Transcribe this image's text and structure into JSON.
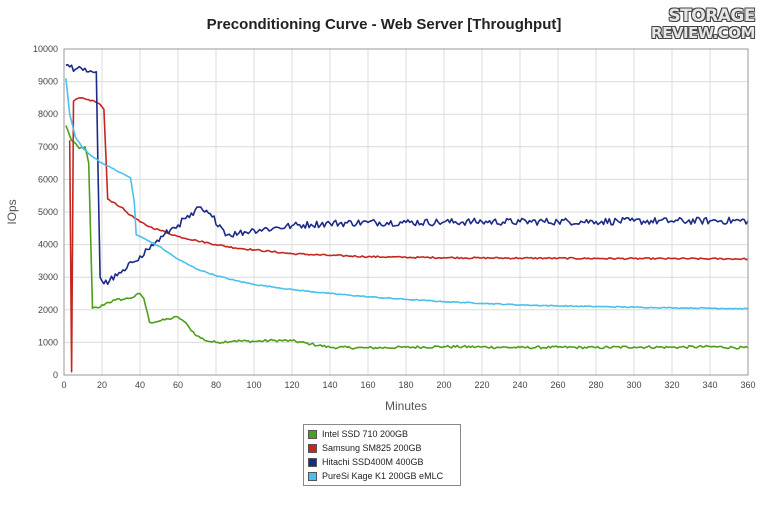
{
  "chart_data": {
    "type": "line",
    "title": "Preconditioning Curve - Web Server [Throughput]",
    "xlabel": "Minutes",
    "ylabel": "IOps",
    "xlim": [
      0,
      360
    ],
    "ylim": [
      0,
      10000
    ],
    "xticks": [
      0,
      20,
      40,
      60,
      80,
      100,
      120,
      140,
      160,
      180,
      200,
      220,
      240,
      260,
      280,
      300,
      320,
      340,
      360
    ],
    "yticks": [
      0,
      1000,
      2000,
      3000,
      4000,
      5000,
      6000,
      7000,
      8000,
      9000,
      10000
    ],
    "grid": true,
    "legend_position": "bottom",
    "series": [
      {
        "name": "Intel SSD 710 200GB",
        "color": "#4d9e1b",
        "points": [
          [
            1,
            7650
          ],
          [
            4,
            7200
          ],
          [
            8,
            6950
          ],
          [
            11,
            7000
          ],
          [
            13,
            6500
          ],
          [
            15,
            2050
          ],
          [
            18,
            2060
          ],
          [
            22,
            2200
          ],
          [
            27,
            2300
          ],
          [
            32,
            2330
          ],
          [
            37,
            2400
          ],
          [
            40,
            2500
          ],
          [
            42,
            2350
          ],
          [
            45,
            1620
          ],
          [
            50,
            1650
          ],
          [
            55,
            1720
          ],
          [
            60,
            1780
          ],
          [
            63,
            1650
          ],
          [
            66,
            1450
          ],
          [
            70,
            1200
          ],
          [
            75,
            1050
          ],
          [
            80,
            1000
          ],
          [
            90,
            1050
          ],
          [
            100,
            1030
          ],
          [
            110,
            1060
          ],
          [
            120,
            1050
          ],
          [
            130,
            950
          ],
          [
            140,
            850
          ],
          [
            160,
            830
          ],
          [
            180,
            850
          ],
          [
            200,
            870
          ],
          [
            220,
            860
          ],
          [
            240,
            840
          ],
          [
            260,
            850
          ],
          [
            280,
            840
          ],
          [
            300,
            860
          ],
          [
            320,
            850
          ],
          [
            340,
            870
          ],
          [
            360,
            830
          ]
        ],
        "noise": 40
      },
      {
        "name": "Samsung SM825 200GB",
        "color": "#c4271f",
        "points": [
          [
            3,
            7200
          ],
          [
            4,
            100
          ],
          [
            5,
            8400
          ],
          [
            8,
            8500
          ],
          [
            12,
            8450
          ],
          [
            16,
            8400
          ],
          [
            19,
            8300
          ],
          [
            21,
            8150
          ],
          [
            23,
            5400
          ],
          [
            26,
            5300
          ],
          [
            30,
            5150
          ],
          [
            35,
            4900
          ],
          [
            40,
            4700
          ],
          [
            45,
            4550
          ],
          [
            50,
            4450
          ],
          [
            55,
            4350
          ],
          [
            60,
            4250
          ],
          [
            70,
            4120
          ],
          [
            80,
            4000
          ],
          [
            90,
            3900
          ],
          [
            100,
            3840
          ],
          [
            110,
            3780
          ],
          [
            120,
            3720
          ],
          [
            140,
            3670
          ],
          [
            160,
            3630
          ],
          [
            180,
            3610
          ],
          [
            200,
            3600
          ],
          [
            220,
            3590
          ],
          [
            240,
            3585
          ],
          [
            260,
            3580
          ],
          [
            280,
            3575
          ],
          [
            300,
            3570
          ],
          [
            320,
            3570
          ],
          [
            340,
            3565
          ],
          [
            360,
            3560
          ]
        ],
        "noise": 25
      },
      {
        "name": "Hitachi SSD400M 400GB",
        "color": "#1c2a88",
        "points": [
          [
            1,
            9500
          ],
          [
            3,
            9450
          ],
          [
            6,
            9380
          ],
          [
            10,
            9350
          ],
          [
            14,
            9330
          ],
          [
            17,
            9300
          ],
          [
            18,
            6000
          ],
          [
            19,
            3000
          ],
          [
            21,
            2800
          ],
          [
            24,
            2900
          ],
          [
            28,
            3050
          ],
          [
            32,
            3200
          ],
          [
            36,
            3450
          ],
          [
            40,
            3650
          ],
          [
            44,
            3850
          ],
          [
            48,
            4050
          ],
          [
            52,
            4250
          ],
          [
            56,
            4450
          ],
          [
            60,
            4600
          ],
          [
            64,
            4800
          ],
          [
            68,
            4900
          ],
          [
            71,
            5150
          ],
          [
            74,
            5000
          ],
          [
            78,
            4850
          ],
          [
            82,
            4600
          ],
          [
            86,
            4300
          ],
          [
            92,
            4350
          ],
          [
            100,
            4450
          ],
          [
            110,
            4500
          ],
          [
            120,
            4580
          ],
          [
            130,
            4620
          ],
          [
            140,
            4650
          ],
          [
            160,
            4680
          ],
          [
            180,
            4680
          ],
          [
            200,
            4690
          ],
          [
            220,
            4700
          ],
          [
            240,
            4700
          ],
          [
            260,
            4710
          ],
          [
            280,
            4710
          ],
          [
            300,
            4720
          ],
          [
            320,
            4720
          ],
          [
            340,
            4730
          ],
          [
            360,
            4730
          ]
        ],
        "noise": 110
      },
      {
        "name": "PureSi Kage K1 200GB eMLC",
        "color": "#4bbfee",
        "points": [
          [
            1,
            9100
          ],
          [
            3,
            8000
          ],
          [
            6,
            7300
          ],
          [
            10,
            6950
          ],
          [
            15,
            6700
          ],
          [
            20,
            6500
          ],
          [
            25,
            6350
          ],
          [
            30,
            6200
          ],
          [
            35,
            6050
          ],
          [
            37,
            5300
          ],
          [
            38,
            4300
          ],
          [
            40,
            4250
          ],
          [
            45,
            4100
          ],
          [
            50,
            3950
          ],
          [
            55,
            3750
          ],
          [
            60,
            3550
          ],
          [
            65,
            3400
          ],
          [
            70,
            3250
          ],
          [
            80,
            3050
          ],
          [
            90,
            2900
          ],
          [
            100,
            2780
          ],
          [
            110,
            2700
          ],
          [
            120,
            2620
          ],
          [
            140,
            2500
          ],
          [
            160,
            2400
          ],
          [
            180,
            2320
          ],
          [
            200,
            2250
          ],
          [
            220,
            2200
          ],
          [
            240,
            2150
          ],
          [
            260,
            2120
          ],
          [
            280,
            2100
          ],
          [
            300,
            2080
          ],
          [
            320,
            2060
          ],
          [
            340,
            2050
          ],
          [
            360,
            2030
          ]
        ],
        "noise": 15
      }
    ]
  },
  "logo": {
    "line1": "STORAGE",
    "line2": "REVIEW.COM"
  }
}
